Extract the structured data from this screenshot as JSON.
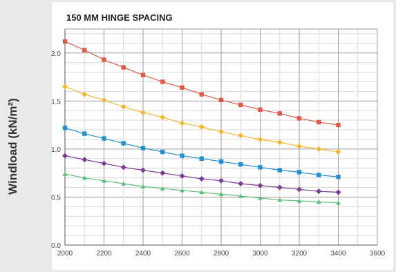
{
  "chart_data": {
    "type": "line",
    "title": "150 MM HINGE SPACING",
    "ylabel": "Windload (kN/m²)",
    "xlabel": "",
    "xlim": [
      2000,
      3600
    ],
    "ylim": [
      0.0,
      2.25
    ],
    "x_ticks": [
      "2000",
      "2200",
      "2400",
      "2600",
      "2800",
      "3000",
      "3200",
      "3400",
      "3600"
    ],
    "y_ticks": [
      "0.0",
      "0.5",
      "1.0",
      "1.5",
      "2.0"
    ],
    "grid": true,
    "x": [
      2000,
      2100,
      2200,
      2300,
      2400,
      2500,
      2600,
      2700,
      2800,
      2900,
      3000,
      3100,
      3200,
      3300,
      3400
    ],
    "series": [
      {
        "color": "#e05a47",
        "marker": "square",
        "values": [
          2.12,
          2.03,
          1.93,
          1.85,
          1.77,
          1.7,
          1.64,
          1.57,
          1.51,
          1.46,
          1.41,
          1.37,
          1.32,
          1.28,
          1.25
        ]
      },
      {
        "color": "#f5b731",
        "marker": "diamond",
        "values": [
          1.65,
          1.57,
          1.51,
          1.44,
          1.38,
          1.33,
          1.27,
          1.23,
          1.18,
          1.14,
          1.1,
          1.07,
          1.03,
          1.0,
          0.97
        ]
      },
      {
        "color": "#2590d0",
        "marker": "square",
        "values": [
          1.22,
          1.16,
          1.11,
          1.06,
          1.01,
          0.97,
          0.93,
          0.9,
          0.87,
          0.84,
          0.81,
          0.78,
          0.76,
          0.73,
          0.71
        ]
      },
      {
        "color": "#7b3a96",
        "marker": "diamond",
        "values": [
          0.93,
          0.89,
          0.85,
          0.81,
          0.78,
          0.75,
          0.72,
          0.69,
          0.67,
          0.64,
          0.62,
          0.6,
          0.58,
          0.56,
          0.55
        ]
      },
      {
        "color": "#5cc07a",
        "marker": "triangle",
        "values": [
          0.74,
          0.7,
          0.67,
          0.64,
          0.61,
          0.59,
          0.57,
          0.55,
          0.53,
          0.51,
          0.49,
          0.47,
          0.46,
          0.45,
          0.44
        ]
      }
    ]
  }
}
